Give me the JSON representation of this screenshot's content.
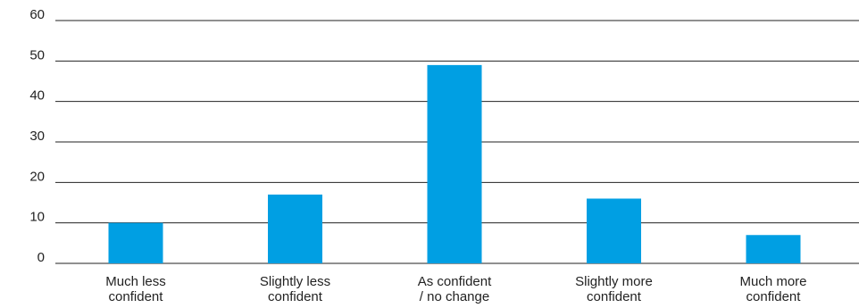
{
  "chart_data": {
    "type": "bar",
    "categories": [
      [
        "Much less",
        "confident"
      ],
      [
        "Slightly less",
        "confident"
      ],
      [
        "As confident",
        "/ no change"
      ],
      [
        "Slightly more",
        "confident"
      ],
      [
        "Much more",
        "confident"
      ]
    ],
    "values": [
      10,
      17,
      49,
      16,
      7
    ],
    "ylim": [
      0,
      60
    ],
    "yticks": [
      0,
      10,
      20,
      30,
      40,
      50,
      60
    ],
    "grid": true,
    "bar_color": "#009fe3",
    "axis_color": "#222222"
  }
}
